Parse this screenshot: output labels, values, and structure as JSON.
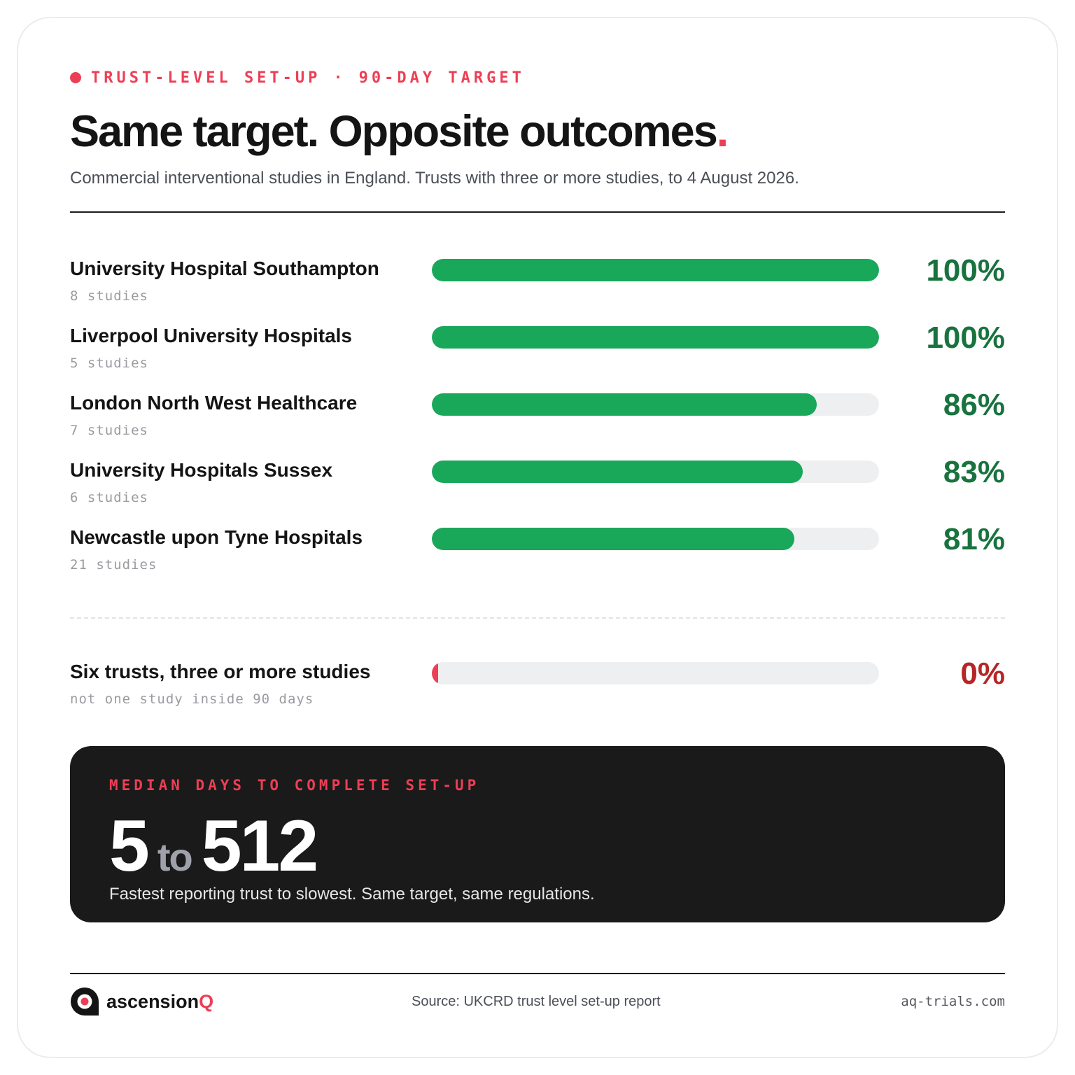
{
  "kicker": {
    "left": "TRUST-LEVEL SET-UP",
    "separator": "·",
    "right": "90-DAY TARGET"
  },
  "title": {
    "text": "Same target. Opposite outcomes",
    "accent_dot": "."
  },
  "subtitle": "Commercial interventional studies in England. Trusts with three or more studies, to 4 August 2026.",
  "colors": {
    "accent": "#ec3f55",
    "bar_green": "#19a75a",
    "pct_green": "#18733e",
    "pct_red": "#b52626",
    "track": "#eeeff1",
    "panel_bg": "#1a1a1a"
  },
  "chart_data": {
    "type": "bar",
    "orientation": "horizontal",
    "categories": [
      "University Hospital Southampton",
      "Liverpool University Hospitals",
      "London North West Healthcare",
      "University Hospitals Sussex",
      "Newcastle upon Tyne Hospitals"
    ],
    "values": [
      100,
      100,
      86,
      83,
      81
    ],
    "value_labels": [
      "100%",
      "100%",
      "86%",
      "83%",
      "81%"
    ],
    "studies": [
      "8 studies",
      "5 studies",
      "7 studies",
      "6 studies",
      "21 studies"
    ],
    "xlim": [
      0,
      100
    ],
    "comparison": {
      "name": "Six trusts, three or more studies",
      "note": "not one study inside 90 days",
      "value": 0,
      "value_label": "0%"
    }
  },
  "median_panel": {
    "label": "MEDIAN DAYS TO COMPLETE SET-UP",
    "low": "5",
    "connector": "to",
    "high": "512",
    "note": "Fastest reporting trust to slowest. Same target, same regulations."
  },
  "footer": {
    "brand_main": "ascension",
    "brand_accent": "Q",
    "logo_icon": "ascensionq-logo-icon",
    "source": "Source: UKCRD trust level set-up report",
    "site": "aq-trials.com"
  }
}
